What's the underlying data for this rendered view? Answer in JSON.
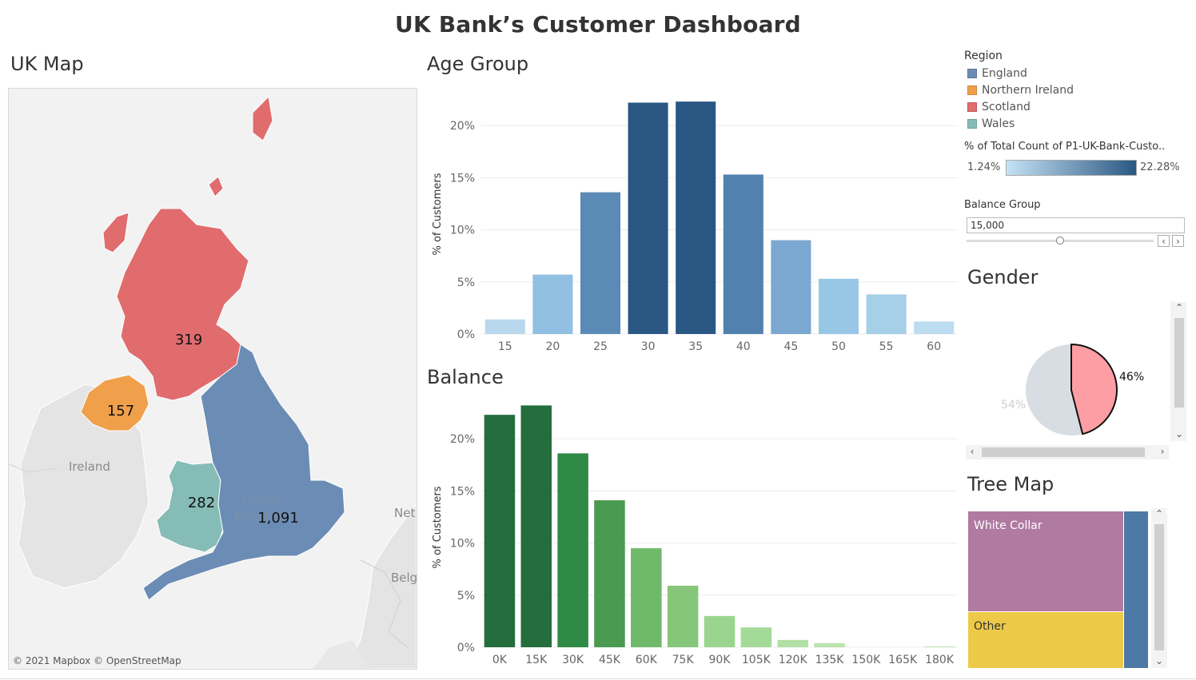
{
  "dashboard_title": "UK Bank’s Customer Dashboard",
  "map": {
    "title": "UK Map",
    "attribution": "© 2021 Mapbox © OpenStreetMap",
    "place_labels": {
      "ireland": "Ireland",
      "uk_line1": "United",
      "uk_line2": "Kingdom",
      "net": "Net",
      "bel": "Belg"
    },
    "regions": [
      {
        "name": "Scotland",
        "count": "319",
        "color": "#e06c6e"
      },
      {
        "name": "Northern Ireland",
        "count": "157",
        "color": "#f0a04a"
      },
      {
        "name": "Wales",
        "count": "282",
        "color": "#86bcb6"
      },
      {
        "name": "England",
        "count": "1,091",
        "color": "#6b8db5"
      }
    ]
  },
  "age_chart": {
    "title": "Age Group",
    "ylabel": "% of Customers",
    "y_ticks": [
      "0%",
      "5%",
      "10%",
      "15%",
      "20%"
    ],
    "categories": [
      "15",
      "20",
      "25",
      "30",
      "35",
      "40",
      "45",
      "50",
      "55",
      "60"
    ],
    "values": [
      1.4,
      5.7,
      13.6,
      22.2,
      22.3,
      15.3,
      9.0,
      5.3,
      3.8,
      1.2
    ],
    "colors": [
      "#b9d8ee",
      "#91c0e2",
      "#5a8ab5",
      "#2a5783",
      "#2a5783",
      "#5281b0",
      "#7ba8d0",
      "#98c7e6",
      "#a6cfe8",
      "#bcdcf0"
    ]
  },
  "balance_chart": {
    "title": "Balance",
    "ylabel": "% of Customers",
    "y_ticks": [
      "0%",
      "5%",
      "10%",
      "15%",
      "20%"
    ],
    "categories": [
      "0K",
      "15K",
      "30K",
      "45K",
      "60K",
      "75K",
      "90K",
      "105K",
      "120K",
      "135K",
      "150K",
      "165K",
      "180K"
    ],
    "values": [
      22.3,
      23.2,
      18.6,
      14.1,
      9.5,
      5.9,
      3.0,
      1.9,
      0.7,
      0.4,
      0.0,
      0.0,
      0.1
    ],
    "colors": [
      "#246d3c",
      "#246d3c",
      "#2f8a45",
      "#4a9a52",
      "#6fb96a",
      "#86c67a",
      "#99d58e",
      "#a4da98",
      "#b1e0a4",
      "#bbe4ae",
      "#c6e9b9",
      "#c6e9b9",
      "#c6e9b9"
    ]
  },
  "legend": {
    "region_title": "Region",
    "regions": [
      {
        "label": "England",
        "color": "#6b8db5"
      },
      {
        "label": "Northern Ireland",
        "color": "#f0a04a"
      },
      {
        "label": "Scotland",
        "color": "#e06c6e"
      },
      {
        "label": "Wales",
        "color": "#86bcb6"
      }
    ],
    "pct_title": "% of Total Count of P1-UK-Bank-Custo..",
    "pct_min": "1.24%",
    "pct_max": "22.28%",
    "pct_color_low": "#c5e2f5",
    "pct_color_high": "#2a5783"
  },
  "balance_group": {
    "title": "Balance Group",
    "value": "15,000",
    "slider_fraction": 0.5
  },
  "gender": {
    "title": "Gender",
    "slices": [
      {
        "label": "46%",
        "value": 46,
        "color": "#fc9ea3",
        "highlight": true
      },
      {
        "label": "54%",
        "value": 54,
        "color": "#d8dde3",
        "highlight": false
      }
    ]
  },
  "treemap": {
    "title": "Tree Map",
    "tiles": [
      {
        "label": "White Collar",
        "color": "#b07aa1"
      },
      {
        "label": "Other",
        "color": "#edc948"
      },
      {
        "label": "",
        "color": "#4e79a7"
      }
    ]
  }
}
